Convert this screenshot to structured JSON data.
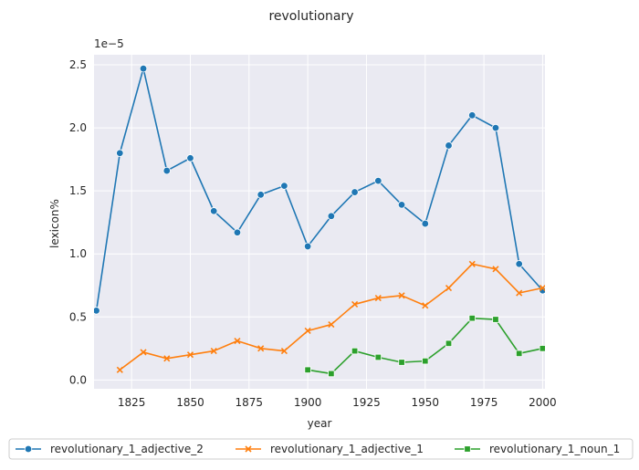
{
  "chart_data": {
    "type": "line",
    "title": "revolutionary",
    "xlabel": "year",
    "ylabel": "lexicon%",
    "y_scale_label": "1e−5",
    "xlim": [
      1809,
      2001
    ],
    "ylim": [
      -0.07,
      2.58
    ],
    "x_ticks": [
      1825,
      1850,
      1875,
      1900,
      1925,
      1950,
      1975,
      2000
    ],
    "y_ticks": [
      0.0,
      0.5,
      1.0,
      1.5,
      2.0,
      2.5
    ],
    "x_tick_labels": [
      "1825",
      "1850",
      "1875",
      "1900",
      "1925",
      "1950",
      "1975",
      "2000"
    ],
    "y_tick_labels": [
      "0.0",
      "0.5",
      "1.0",
      "1.5",
      "2.0",
      "2.5"
    ],
    "grid": true,
    "legend_position": "bottom",
    "series": [
      {
        "name": "revolutionary_1_adjective_2",
        "color": "#1f77b4",
        "marker": "circle",
        "x": [
          1810,
          1820,
          1830,
          1840,
          1850,
          1860,
          1870,
          1880,
          1890,
          1900,
          1910,
          1920,
          1930,
          1940,
          1950,
          1960,
          1970,
          1980,
          1990,
          2000
        ],
        "y": [
          0.55,
          1.8,
          2.47,
          1.66,
          1.76,
          1.34,
          1.17,
          1.47,
          1.54,
          1.06,
          1.3,
          1.49,
          1.58,
          1.39,
          1.24,
          1.86,
          2.1,
          2.0,
          0.92,
          0.71
        ]
      },
      {
        "name": "revolutionary_1_adjective_1",
        "color": "#ff7f0e",
        "marker": "x",
        "x": [
          1820,
          1830,
          1840,
          1850,
          1860,
          1870,
          1880,
          1890,
          1900,
          1910,
          1920,
          1930,
          1940,
          1950,
          1960,
          1970,
          1980,
          1990,
          2000
        ],
        "y": [
          0.08,
          0.22,
          0.17,
          0.2,
          0.23,
          0.31,
          0.25,
          0.23,
          0.39,
          0.44,
          0.6,
          0.65,
          0.67,
          0.59,
          0.73,
          0.92,
          0.88,
          0.69,
          0.73
        ]
      },
      {
        "name": "revolutionary_1_noun_1",
        "color": "#2ca02c",
        "marker": "square",
        "x": [
          1900,
          1910,
          1920,
          1930,
          1940,
          1950,
          1960,
          1970,
          1980,
          1990,
          2000
        ],
        "y": [
          0.08,
          0.05,
          0.23,
          0.18,
          0.14,
          0.15,
          0.29,
          0.49,
          0.48,
          0.21,
          0.25
        ]
      }
    ]
  }
}
